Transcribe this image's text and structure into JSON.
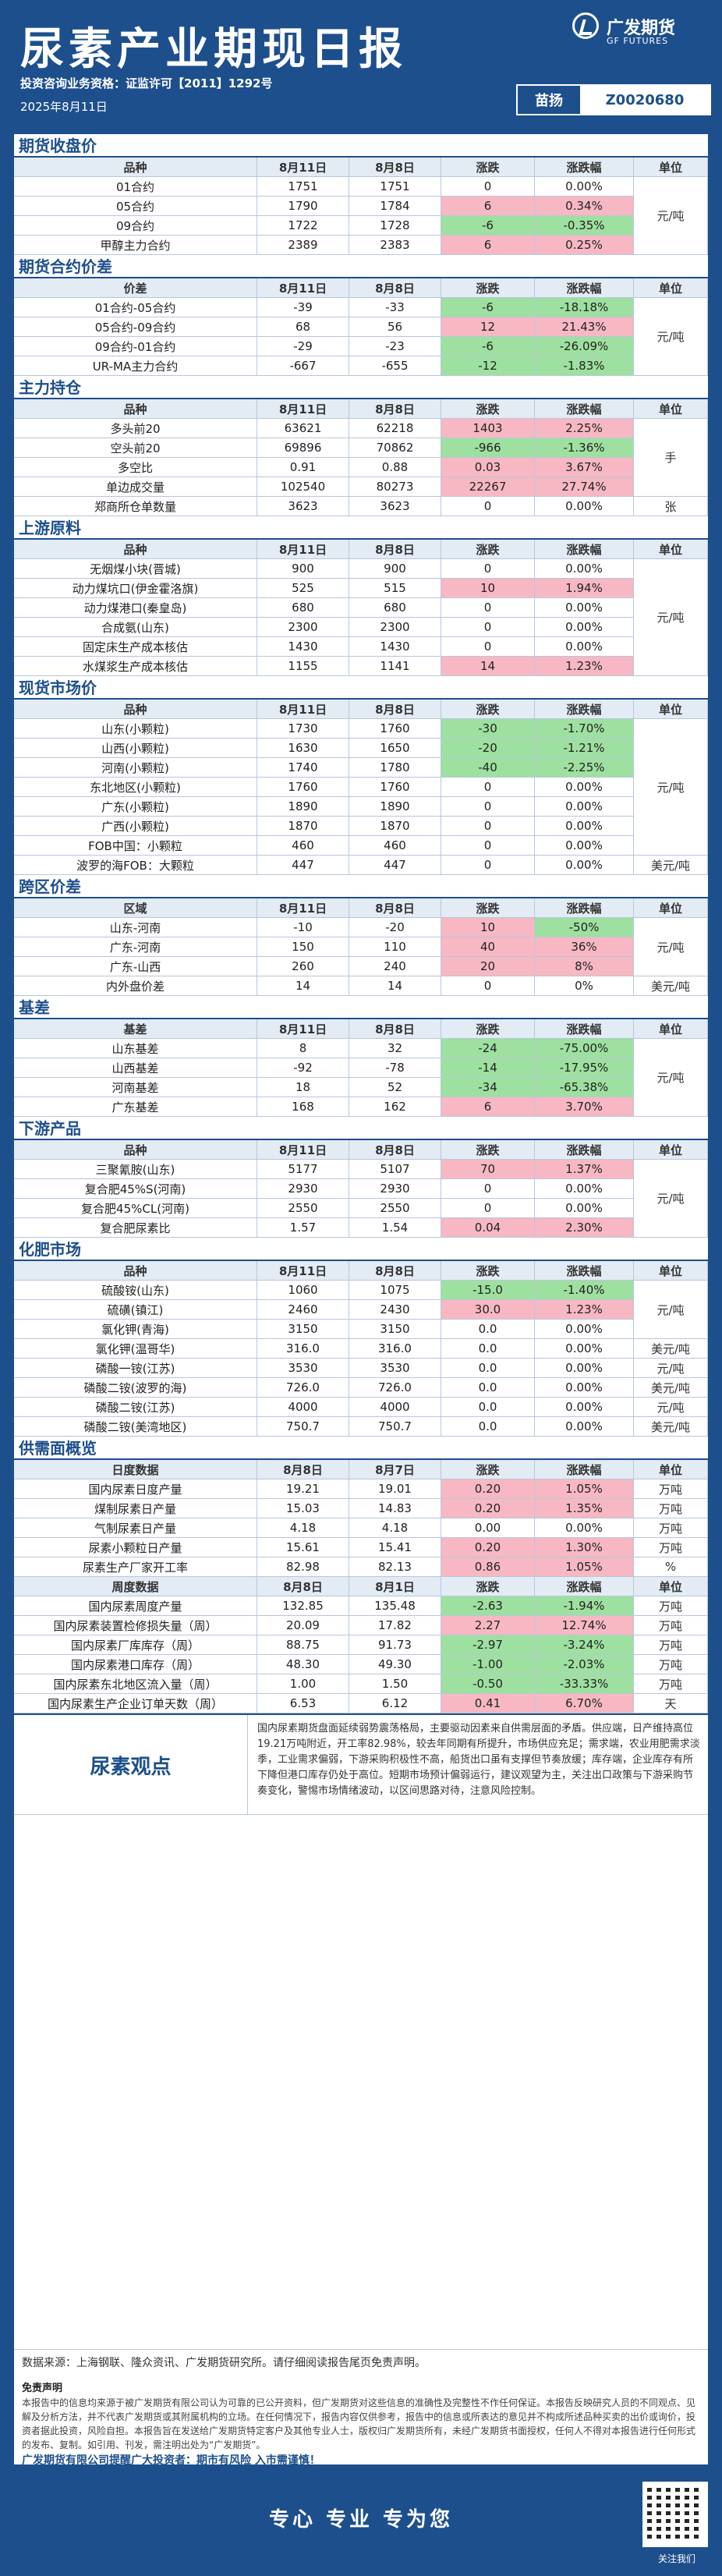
{
  "header": {
    "title": "尿素产业期现日报",
    "license": "投资咨询业务资格：证监许可【2011】1292号",
    "date": "2025年8月11日",
    "brand_cn": "广发期货",
    "brand_en": "GF FUTURES",
    "analyst": "苗扬",
    "code": "Z0020680"
  },
  "sections": [
    {
      "title": "期货收盘价",
      "head": [
        "品种",
        "8月11日",
        "8月8日",
        "涨跌",
        "涨跌幅",
        "单位"
      ],
      "unit": "元/吨",
      "unit_rows": [
        0,
        4
      ],
      "rows": [
        [
          "01合约",
          "1751",
          "1751",
          "0",
          "0.00%",
          ""
        ],
        [
          "05合约",
          "1790",
          "1784",
          "6",
          "0.34%",
          "up"
        ],
        [
          "09合约",
          "1722",
          "1728",
          "-6",
          "-0.35%",
          "dn"
        ],
        [
          "甲醇主力合约",
          "2389",
          "2383",
          "6",
          "0.25%",
          "up"
        ]
      ]
    },
    {
      "title": "期货合约价差",
      "head": [
        "价差",
        "8月11日",
        "8月8日",
        "涨跌",
        "涨跌幅",
        "单位"
      ],
      "unit": "元/吨",
      "unit_rows": [
        0,
        4
      ],
      "rows": [
        [
          "01合约-05合约",
          "-39",
          "-33",
          "-6",
          "-18.18%",
          "dn"
        ],
        [
          "05合约-09合约",
          "68",
          "56",
          "12",
          "21.43%",
          "up"
        ],
        [
          "09合约-01合约",
          "-29",
          "-23",
          "-6",
          "-26.09%",
          "dn"
        ],
        [
          "UR-MA主力合约",
          "-667",
          "-655",
          "-12",
          "-1.83%",
          "dn"
        ]
      ]
    },
    {
      "title": "主力持仓",
      "head": [
        "品种",
        "8月11日",
        "8月8日",
        "涨跌",
        "涨跌幅",
        "单位"
      ],
      "unit": "手",
      "unit_rows": [
        0,
        4
      ],
      "unit2": "张",
      "rows": [
        [
          "多头前20",
          "63621",
          "62218",
          "1403",
          "2.25%",
          "up"
        ],
        [
          "空头前20",
          "69896",
          "70862",
          "-966",
          "-1.36%",
          "dn"
        ],
        [
          "多空比",
          "0.91",
          "0.88",
          "0.03",
          "3.67%",
          "up"
        ],
        [
          "单边成交量",
          "102540",
          "80273",
          "22267",
          "27.74%",
          "up"
        ],
        [
          "郑商所仓单数量",
          "3623",
          "3623",
          "0",
          "0.00%",
          ""
        ]
      ]
    },
    {
      "title": "上游原料",
      "head": [
        "品种",
        "8月11日",
        "8月8日",
        "涨跌",
        "涨跌幅",
        "单位"
      ],
      "unit": "元/吨",
      "unit_rows": [
        0,
        6
      ],
      "rows": [
        [
          "无烟煤小块(晋城)",
          "900",
          "900",
          "0",
          "0.00%",
          ""
        ],
        [
          "动力煤坑口(伊金霍洛旗)",
          "525",
          "515",
          "10",
          "1.94%",
          "up"
        ],
        [
          "动力煤港口(秦皇岛)",
          "680",
          "680",
          "0",
          "0.00%",
          ""
        ],
        [
          "合成氨(山东)",
          "2300",
          "2300",
          "0",
          "0.00%",
          ""
        ],
        [
          "固定床生产成本核估",
          "1430",
          "1430",
          "0",
          "0.00%",
          ""
        ],
        [
          "水煤浆生产成本核估",
          "1155",
          "1141",
          "14",
          "1.23%",
          "up"
        ]
      ]
    },
    {
      "title": "现货市场价",
      "head": [
        "品种",
        "8月11日",
        "8月8日",
        "涨跌",
        "涨跌幅",
        "单位"
      ],
      "unit": "元/吨",
      "unit_rows": [
        0,
        7
      ],
      "unit2": "美元/吨",
      "rows": [
        [
          "山东(小颗粒)",
          "1730",
          "1760",
          "-30",
          "-1.70%",
          "dn"
        ],
        [
          "山西(小颗粒)",
          "1630",
          "1650",
          "-20",
          "-1.21%",
          "dn"
        ],
        [
          "河南(小颗粒)",
          "1740",
          "1780",
          "-40",
          "-2.25%",
          "dn"
        ],
        [
          "东北地区(小颗粒)",
          "1760",
          "1760",
          "0",
          "0.00%",
          ""
        ],
        [
          "广东(小颗粒)",
          "1890",
          "1890",
          "0",
          "0.00%",
          ""
        ],
        [
          "广西(小颗粒)",
          "1870",
          "1870",
          "0",
          "0.00%",
          ""
        ],
        [
          "FOB中国：小颗粒",
          "460",
          "460",
          "0",
          "0.00%",
          ""
        ],
        [
          "波罗的海FOB：大颗粒",
          "447",
          "447",
          "0",
          "0.00%",
          ""
        ]
      ]
    },
    {
      "title": "跨区价差",
      "head": [
        "区域",
        "8月11日",
        "8月8日",
        "涨跌",
        "涨跌幅",
        "单位"
      ],
      "unit": "元/吨",
      "unit_rows": [
        0,
        3
      ],
      "unit2": "美元/吨",
      "rows": [
        [
          "山东-河南",
          "-10",
          "-20",
          "10",
          "-50%",
          "up|dn"
        ],
        [
          "广东-河南",
          "150",
          "110",
          "40",
          "36%",
          "up"
        ],
        [
          "广东-山西",
          "260",
          "240",
          "20",
          "8%",
          "up"
        ],
        [
          "内外盘价差",
          "14",
          "14",
          "0",
          "0%",
          ""
        ]
      ]
    },
    {
      "title": "基差",
      "head": [
        "基差",
        "8月11日",
        "8月8日",
        "涨跌",
        "涨跌幅",
        "单位"
      ],
      "unit": "元/吨",
      "unit_rows": [
        0,
        4
      ],
      "rows": [
        [
          "山东基差",
          "8",
          "32",
          "-24",
          "-75.00%",
          "dn"
        ],
        [
          "山西基差",
          "-92",
          "-78",
          "-14",
          "-17.95%",
          "dn"
        ],
        [
          "河南基差",
          "18",
          "52",
          "-34",
          "-65.38%",
          "dn"
        ],
        [
          "广东基差",
          "168",
          "162",
          "6",
          "3.70%",
          "up"
        ]
      ]
    },
    {
      "title": "下游产品",
      "head": [
        "品种",
        "8月11日",
        "8月8日",
        "涨跌",
        "涨跌幅",
        "单位"
      ],
      "unit": "元/吨",
      "unit_rows": [
        0,
        4
      ],
      "rows": [
        [
          "三聚氰胺(山东)",
          "5177",
          "5107",
          "70",
          "1.37%",
          "up"
        ],
        [
          "复合肥45%S(河南)",
          "2930",
          "2930",
          "0",
          "0.00%",
          ""
        ],
        [
          "复合肥45%CL(河南)",
          "2550",
          "2550",
          "0",
          "0.00%",
          ""
        ],
        [
          "复合肥尿素比",
          "1.57",
          "1.54",
          "0.04",
          "2.30%",
          "up"
        ]
      ]
    },
    {
      "title": "化肥市场",
      "head": [
        "品种",
        "8月11日",
        "8月8日",
        "涨跌",
        "涨跌幅",
        "单位"
      ],
      "unit": "元/吨",
      "unit_rows": [
        0,
        3
      ],
      "rows": [
        [
          "硫酸铵(山东)",
          "1060",
          "1075",
          "-15.0",
          "-1.40%",
          "dn"
        ],
        [
          "硫磺(镇江)",
          "2460",
          "2430",
          "30.0",
          "1.23%",
          "up"
        ],
        [
          "氯化钾(青海)",
          "3150",
          "3150",
          "0.0",
          "0.00%",
          ""
        ],
        [
          "氯化钾(温哥华)",
          "316.0",
          "316.0",
          "0.0",
          "0.00%",
          "",
          "美元/吨"
        ],
        [
          "磷酸一铵(江苏)",
          "3530",
          "3530",
          "0.0",
          "0.00%",
          "",
          "元/吨"
        ],
        [
          "磷酸二铵(波罗的海)",
          "726.0",
          "726.0",
          "0.0",
          "0.00%",
          "",
          "美元/吨"
        ],
        [
          "磷酸二铵(江苏)",
          "4000",
          "4000",
          "0.0",
          "0.00%",
          "",
          "元/吨"
        ],
        [
          "磷酸二铵(美湾地区)",
          "750.7",
          "750.7",
          "0.0",
          "0.00%",
          "",
          "美元/吨"
        ]
      ]
    },
    {
      "title": "供需面概览",
      "head": [
        "日度数据",
        "8月8日",
        "8月7日",
        "涨跌",
        "涨跌幅",
        "单位"
      ],
      "rows": [
        [
          "国内尿素日度产量",
          "19.21",
          "19.01",
          "0.20",
          "1.05%",
          "up",
          "万吨"
        ],
        [
          "煤制尿素日产量",
          "15.03",
          "14.83",
          "0.20",
          "1.35%",
          "up",
          "万吨"
        ],
        [
          "气制尿素日产量",
          "4.18",
          "4.18",
          "0.00",
          "0.00%",
          "",
          "万吨"
        ],
        [
          "尿素小颗粒日产量",
          "15.61",
          "15.41",
          "0.20",
          "1.30%",
          "up",
          "万吨"
        ],
        [
          "尿素生产厂家开工率",
          "82.98",
          "82.13",
          "0.86",
          "1.05%",
          "up",
          "%"
        ]
      ],
      "head2": [
        "周度数据",
        "8月8日",
        "8月1日",
        "涨跌",
        "涨跌幅",
        "单位"
      ],
      "rows2": [
        [
          "国内尿素周度产量",
          "132.85",
          "135.48",
          "-2.63",
          "-1.94%",
          "dn",
          "万吨"
        ],
        [
          "国内尿素装置检修损失量（周）",
          "20.09",
          "17.82",
          "2.27",
          "12.74%",
          "up",
          "万吨"
        ],
        [
          "国内尿素厂库库存（周）",
          "88.75",
          "91.73",
          "-2.97",
          "-3.24%",
          "dn",
          "万吨"
        ],
        [
          "国内尿素港口库存（周）",
          "48.30",
          "49.30",
          "-1.00",
          "-2.03%",
          "dn",
          "万吨"
        ],
        [
          "国内尿素东北地区流入量（周）",
          "1.00",
          "1.50",
          "-0.50",
          "-33.33%",
          "dn",
          "万吨"
        ],
        [
          "国内尿素生产企业订单天数（周）",
          "6.53",
          "6.12",
          "0.41",
          "6.70%",
          "up",
          "天"
        ]
      ]
    }
  ],
  "opinion": {
    "label": "尿素观点",
    "text": "国内尿素期货盘面延续弱势震荡格局，主要驱动因素来自供需层面的矛盾。供应端，日产维持高位19.21万吨附近，开工率82.98%，较去年同期有所提升，市场供应充足；需求端，农业用肥需求淡季，工业需求偏弱，下游采购积极性不高，船货出口虽有支撑但节奏放缓；库存端，企业库存有所下降但港口库存仍处于高位。短期市场预计偏弱运行，建议观望为主，关注出口政策与下游采购节奏变化，警惕市场情绪波动，以区间思路对待，注意风险控制。"
  },
  "source": "数据来源：上海钢联、隆众资讯、广发期货研究所。请仔细阅读报告尾页免责声明。",
  "disclaimer": {
    "title": "免责声明",
    "body": "本报告中的信息均来源于被广发期货有限公司认为可靠的已公开资料，但广发期货对这些信息的准确性及完整性不作任何保证。本报告反映研究人员的不同观点、见解及分析方法，并不代表广发期货或其附属机构的立场。在任何情况下，报告内容仅供参考，报告中的信息或所表达的意见并不构成所述品种买卖的出价或询价，投资者据此投资，风险自担。本报告旨在发送给广发期货特定客户及其他专业人士，版权归广发期货所有，未经广发期货书面授权，任何人不得对本报告进行任何形式的发布、复制。如引用、刊发，需注明出处为“广发期货”。",
    "warn": "广发期货有限公司提醒广大投资者：期市有风险 入市需谨慎！"
  },
  "footer": {
    "slogan": "专心  专业  专为您",
    "qr_label": "关注我们"
  }
}
